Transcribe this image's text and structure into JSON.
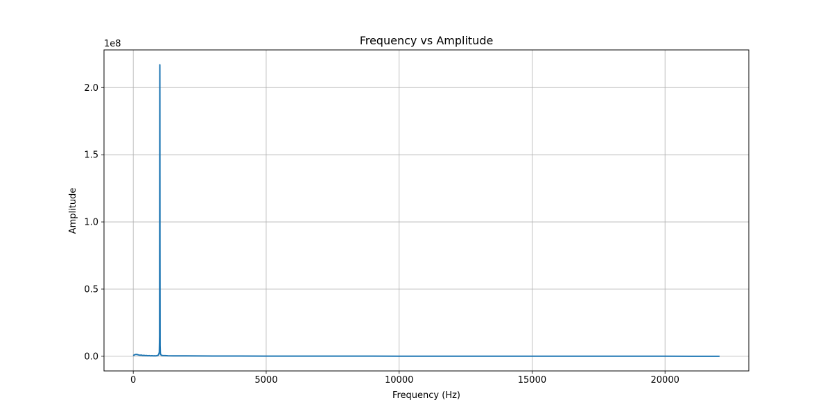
{
  "chart_data": {
    "type": "line",
    "title": "Frequency vs Amplitude",
    "xlabel": "Frequency (Hz)",
    "ylabel": "Amplitude",
    "y_offset_label": "1e8",
    "xlim": [
      -1100,
      23150
    ],
    "ylim": [
      -10900000,
      228000000
    ],
    "x_ticks": [
      0,
      5000,
      10000,
      15000,
      20000
    ],
    "x_tick_labels": [
      "0",
      "5000",
      "10000",
      "15000",
      "20000"
    ],
    "y_ticks": [
      0,
      50000000,
      100000000,
      150000000,
      200000000
    ],
    "y_tick_labels": [
      "0.0",
      "0.5",
      "1.0",
      "1.5",
      "2.0"
    ],
    "grid": true,
    "line_color": "#1f77b4",
    "series": [
      {
        "x": [
          0,
          30,
          60,
          100,
          150,
          200,
          250,
          300,
          350,
          400,
          450,
          500,
          550,
          600,
          650,
          700,
          750,
          800,
          850,
          900,
          950,
          980,
          990,
          995,
          998,
          1000,
          1002,
          1005,
          1010,
          1020,
          1050,
          1100,
          1200,
          1300,
          1500,
          1700,
          2000,
          2500,
          3000,
          3500,
          4000,
          5000,
          6000,
          7000,
          8000,
          9000,
          10000,
          11000,
          12000,
          13000,
          14000,
          15000,
          16000,
          17000,
          18000,
          19000,
          20000,
          21000,
          22050
        ],
        "y": [
          500000,
          900000,
          1200000,
          1400000,
          1300000,
          1000000,
          800000,
          900000,
          600000,
          700000,
          500000,
          600000,
          400000,
          500000,
          350000,
          450000,
          300000,
          400000,
          350000,
          500000,
          1000000,
          3000000,
          15000000,
          120000000,
          200000000,
          217000000,
          190000000,
          80000000,
          8000000,
          2000000,
          800000,
          600000,
          500000,
          400000,
          350000,
          300000,
          300000,
          250000,
          220000,
          200000,
          180000,
          160000,
          140000,
          120000,
          110000,
          100000,
          90000,
          80000,
          75000,
          70000,
          65000,
          60000,
          55000,
          50000,
          45000,
          40000,
          35000,
          30000,
          25000
        ]
      }
    ]
  }
}
